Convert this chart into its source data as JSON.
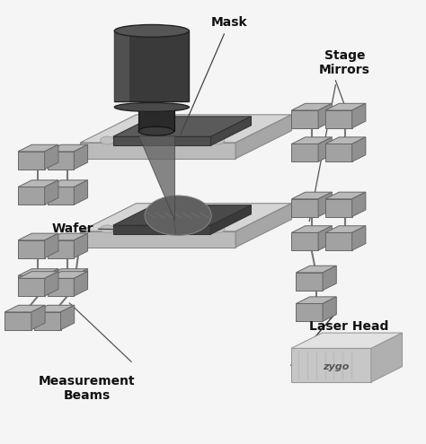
{
  "background_color": "#f5f5f5",
  "platform_light": "#d8d8d8",
  "platform_dark": "#4a4a4a",
  "platform_edge": "#888888",
  "block_color": "#b8b8b8",
  "block_edge": "#666666",
  "cylinder_color": "#3a3a3a",
  "cone_color": "#505050",
  "laser_color": "#e0e0e0",
  "line_color": "#444444",
  "labels": {
    "mask": "Mask",
    "stage_mirrors": "Stage\nMirrors",
    "wafer": "Wafer",
    "laser_head": "Laser Head",
    "measurement_beams": "Measurement\nBeams",
    "zygo": "zygo"
  }
}
